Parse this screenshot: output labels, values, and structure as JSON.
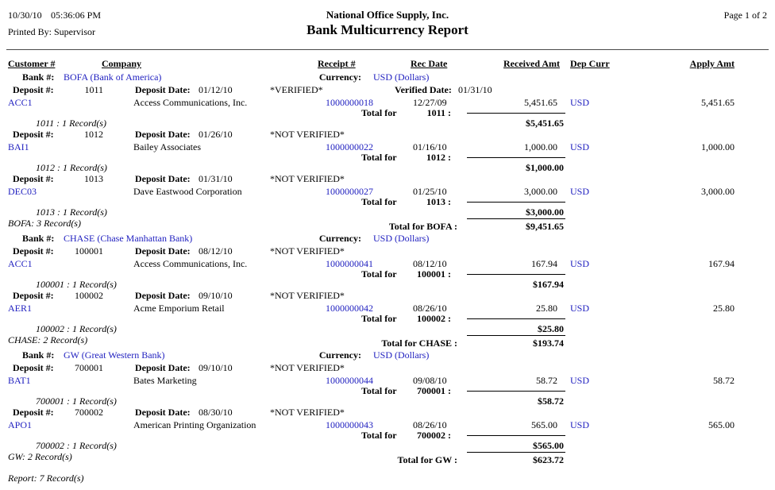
{
  "header": {
    "date": "10/30/10",
    "time": "05:36:06 PM",
    "printed_by": "Printed By: Supervisor",
    "company": "National Office Supply, Inc.",
    "title": "Bank Multicurrency Report",
    "page": "Page 1 of 2"
  },
  "columns": {
    "customer": "Customer #",
    "company": "Company",
    "receipt": "Receipt #",
    "rec_date": "Rec Date",
    "received_amt": "Received Amt",
    "dep_curr": "Dep Curr",
    "apply_amt": "Apply Amt"
  },
  "labels": {
    "bank": "Bank #:",
    "currency": "Currency:",
    "deposit": "Deposit #:",
    "deposit_date": "Deposit Date:",
    "verified_date": "Verified Date:",
    "total_for": "Total for"
  },
  "colors": {
    "link": "#2121c0"
  },
  "banks": [
    {
      "name": "BOFA (Bank of America)",
      "currency": "USD (Dollars)",
      "deposits": [
        {
          "number": "1011",
          "date": "01/12/10",
          "status": "*VERIFIED*",
          "verified_date": "01/31/10",
          "rows": [
            {
              "customer": "ACC1",
              "company": "Access Communications, Inc.",
              "receipt": "1000000018",
              "date": "12/27/09",
              "received": "5,451.65",
              "curr": "USD",
              "apply": "5,451.65"
            }
          ],
          "records": "1011 : 1 Record(s)",
          "total_number": "1011 :",
          "total": "$5,451.65"
        },
        {
          "number": "1012",
          "date": "01/26/10",
          "status": "*NOT VERIFIED*",
          "rows": [
            {
              "customer": "BAI1",
              "company": "Bailey Associates",
              "receipt": "1000000022",
              "date": "01/16/10",
              "received": "1,000.00",
              "curr": "USD",
              "apply": "1,000.00"
            }
          ],
          "records": "1012 : 1 Record(s)",
          "total_number": "1012 :",
          "total": "$1,000.00"
        },
        {
          "number": "1013",
          "date": "01/31/10",
          "status": "*NOT VERIFIED*",
          "rows": [
            {
              "customer": "DEC03",
              "company": "Dave Eastwood Corporation",
              "receipt": "1000000027",
              "date": "01/25/10",
              "received": "3,000.00",
              "curr": "USD",
              "apply": "3,000.00"
            }
          ],
          "records": "1013 : 1 Record(s)",
          "total_number": "1013 :",
          "total": "$3,000.00"
        }
      ],
      "records": "BOFA: 3 Record(s)",
      "total_label": "Total for BOFA :",
      "total": "$9,451.65"
    },
    {
      "name": "CHASE (Chase Manhattan Bank)",
      "currency": "USD (Dollars)",
      "deposits": [
        {
          "number": "100001",
          "date": "08/12/10",
          "status": "*NOT VERIFIED*",
          "rows": [
            {
              "customer": "ACC1",
              "company": "Access Communications, Inc.",
              "receipt": "1000000041",
              "date": "08/12/10",
              "received": "167.94",
              "curr": "USD",
              "apply": "167.94"
            }
          ],
          "records": "100001 : 1 Record(s)",
          "total_number": "100001 :",
          "total": "$167.94"
        },
        {
          "number": "100002",
          "date": "09/10/10",
          "status": "*NOT VERIFIED*",
          "rows": [
            {
              "customer": "AER1",
              "company": "Acme Emporium Retail",
              "receipt": "1000000042",
              "date": "08/26/10",
              "received": "25.80",
              "curr": "USD",
              "apply": "25.80"
            }
          ],
          "records": "100002 : 1 Record(s)",
          "total_number": "100002 :",
          "total": "$25.80"
        }
      ],
      "records": "CHASE: 2 Record(s)",
      "total_label": "Total for CHASE :",
      "total": "$193.74"
    },
    {
      "name": "GW (Great Western Bank)",
      "currency": "USD (Dollars)",
      "deposits": [
        {
          "number": "700001",
          "date": "09/10/10",
          "status": "*NOT VERIFIED*",
          "rows": [
            {
              "customer": "BAT1",
              "company": "Bates Marketing",
              "receipt": "1000000044",
              "date": "09/08/10",
              "received": "58.72",
              "curr": "USD",
              "apply": "58.72"
            }
          ],
          "records": "700001 : 1 Record(s)",
          "total_number": "700001 :",
          "total": "$58.72"
        },
        {
          "number": "700002",
          "date": "08/30/10",
          "status": "*NOT VERIFIED*",
          "rows": [
            {
              "customer": "APO1",
              "company": "American Printing Organization",
              "receipt": "1000000043",
              "date": "08/26/10",
              "received": "565.00",
              "curr": "USD",
              "apply": "565.00"
            }
          ],
          "records": "700002 : 1 Record(s)",
          "total_number": "700002 :",
          "total": "$565.00"
        }
      ],
      "records": "GW: 2 Record(s)",
      "total_label": "Total for GW :",
      "total": "$623.72"
    }
  ],
  "footer": "Report: 7 Record(s)"
}
